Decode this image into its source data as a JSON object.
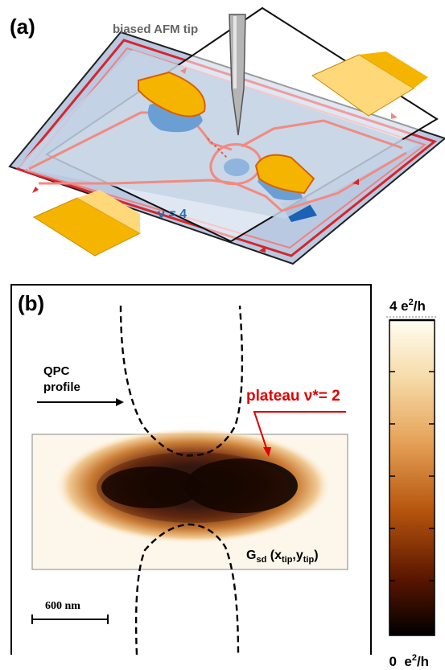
{
  "panel_a": {
    "label": "(a)",
    "tip_label": "biased AFM tip",
    "filling_label": "ν = 4"
  },
  "panel_b": {
    "label": "(b)",
    "qpc_label_line1": "QPC",
    "qpc_label_line2": "profile",
    "plateau_label": "plateau ν*= 2",
    "gsd_main": "G",
    "gsd_sub1": "sd",
    "gsd_open": " (x",
    "gsd_sub2": "tip",
    "gsd_comma": ",y",
    "gsd_sub3": "tip",
    "gsd_close": ")",
    "scale_bar_label": "600 nm"
  },
  "colorbar": {
    "top_value": "4 e",
    "top_sup": "2",
    "top_unit": "/h",
    "bottom_value": "0  e",
    "bottom_sup": "2",
    "bottom_unit": "/h",
    "colors": [
      "#000000",
      "#5a1600",
      "#b8560e",
      "#e6a45a",
      "#f6dcaa",
      "#fffdf2"
    ]
  },
  "colors": {
    "gate": "#f5b400",
    "gate_edge": "#d85f00",
    "sample": "#c6d3e5",
    "depletion": "#6b9fd4",
    "edge_channel": "#f28a80",
    "sample_border": "#d7262b"
  }
}
